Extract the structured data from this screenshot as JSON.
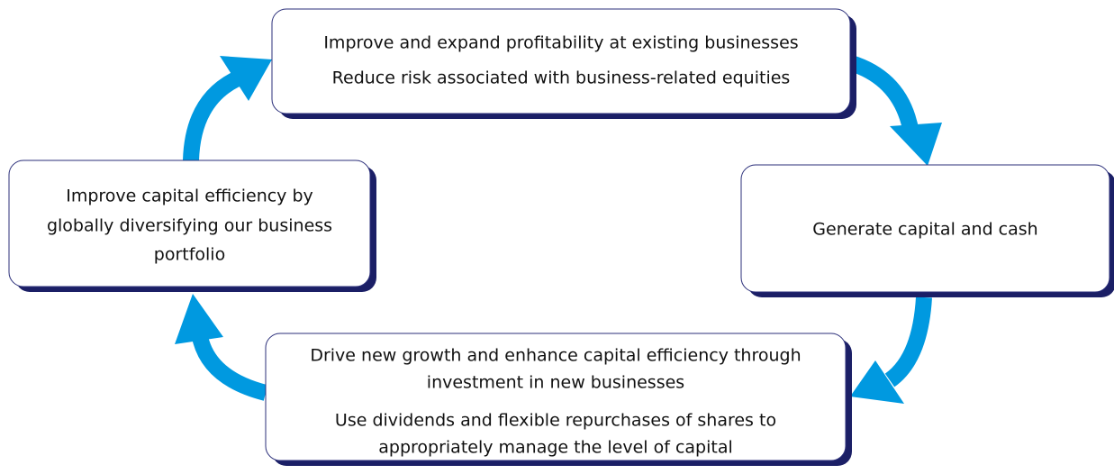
{
  "nodes": [
    {
      "lines": [
        "Improve and expand profitability at existing businesses",
        "Reduce risk associated with business-related equities"
      ]
    },
    {
      "lines": [
        "Generate capital and cash"
      ]
    },
    {
      "lines": [
        "Drive new growth and enhance capital efficiency through",
        "investment in new businesses",
        "Use dividends and flexible repurchases of shares to",
        "appropriately manage the level of capital"
      ]
    },
    {
      "lines": [
        "Improve capital efficiency by",
        "globally diversifying our business",
        "portfolio"
      ]
    }
  ]
}
